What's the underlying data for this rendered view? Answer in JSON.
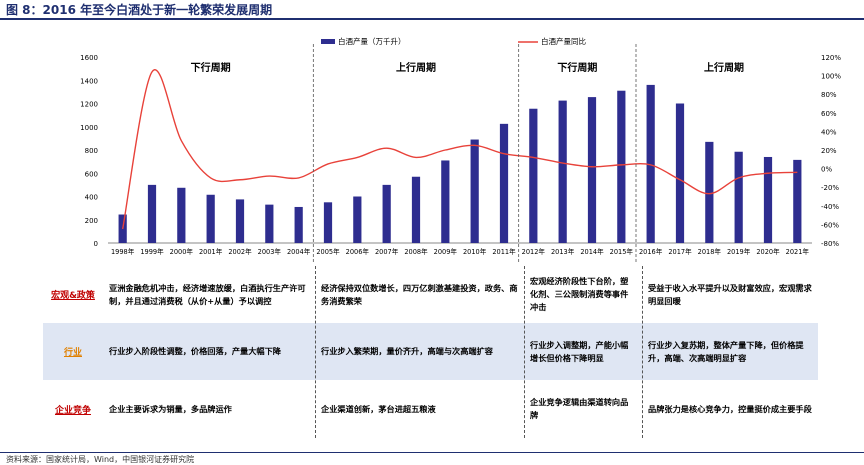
{
  "figure_title": "图 8：2016 年至今白酒处于新一轮繁荣发展周期",
  "chart_data": {
    "type": "bar",
    "categories": [
      "1998年",
      "1999年",
      "2000年",
      "2001年",
      "2002年",
      "2003年",
      "2004年",
      "2005年",
      "2006年",
      "2007年",
      "2008年",
      "2009年",
      "2010年",
      "2011年",
      "2012年",
      "2013年",
      "2014年",
      "2015年",
      "2016年",
      "2017年",
      "2018年",
      "2019年",
      "2020年",
      "2021年"
    ],
    "series": [
      {
        "name": "白酒产量（万千升）",
        "type": "bar",
        "axis": "left",
        "color": "#2e2d8f",
        "values": [
          245,
          500,
          475,
          415,
          375,
          330,
          310,
          350,
          400,
          500,
          570,
          710,
          890,
          1025,
          1155,
          1225,
          1255,
          1310,
          1360,
          1200,
          870,
          785,
          740,
          715
        ]
      },
      {
        "name": "白酒产量同比",
        "type": "line",
        "axis": "right",
        "color": "#e8423a",
        "values": [
          -65,
          104,
          30,
          -10,
          -12,
          -8,
          -10,
          5,
          12,
          22,
          12,
          20,
          25,
          16,
          12,
          6,
          2,
          4,
          4,
          -12,
          -27,
          -10,
          -5,
          -4
        ]
      }
    ],
    "y_left": {
      "min": 0,
      "max": 1600,
      "ticks": [
        "0",
        "200",
        "400",
        "600",
        "800",
        "1000",
        "1200",
        "1400",
        "1600"
      ]
    },
    "y_right": {
      "min": -80,
      "max": 120,
      "ticks": [
        "-80%",
        "-60%",
        "-40%",
        "-20%",
        "0%",
        "20%",
        "40%",
        "60%",
        "80%",
        "100%",
        "120%"
      ]
    },
    "legend_position": "top",
    "phases": [
      {
        "label": "下行周期"
      },
      {
        "label": "上行周期"
      },
      {
        "label": "下行周期"
      },
      {
        "label": "上行周期"
      }
    ]
  },
  "table": {
    "rows": [
      {
        "label": "宏观&政策",
        "label_color": "#c00000",
        "bg": "#ffffff",
        "cells": [
          "亚洲金融危机冲击，经济增速放缓，白酒执行生产许可制，并且通过消费税（从价+从量）予以调控",
          "经济保持双位数增长，四万亿刺激基建投资，政务、商务消费繁荣",
          "宏观经济阶段性下台阶，塑化剂、三公限制消费等事件冲击",
          "受益于收入水平提升以及财富效应，宏观需求明显回暖"
        ]
      },
      {
        "label": "行业",
        "label_color": "#e08000",
        "bg": "#dfe6f3",
        "cells": [
          "行业步入阶段性调整，价格回落，产量大幅下降",
          "行业步入繁荣期，量价齐升，高端与次高端扩容",
          "行业步入调整期，产能小幅增长但价格下降明显",
          "行业步入复苏期，整体产量下降，但价格提升，高端、次高端明显扩容"
        ]
      },
      {
        "label": "企业竞争",
        "label_color": "#c00000",
        "bg": "#ffffff",
        "cells": [
          "企业主要诉求为销量，多品牌运作",
          "企业渠道创新，茅台进超五粮液",
          "企业竞争逻辑由渠道转向品牌",
          "品牌张力是核心竞争力，控量挺价成主要手段"
        ]
      }
    ]
  },
  "source": "资料来源：国家统计局，Wind，中国银河证券研究院"
}
